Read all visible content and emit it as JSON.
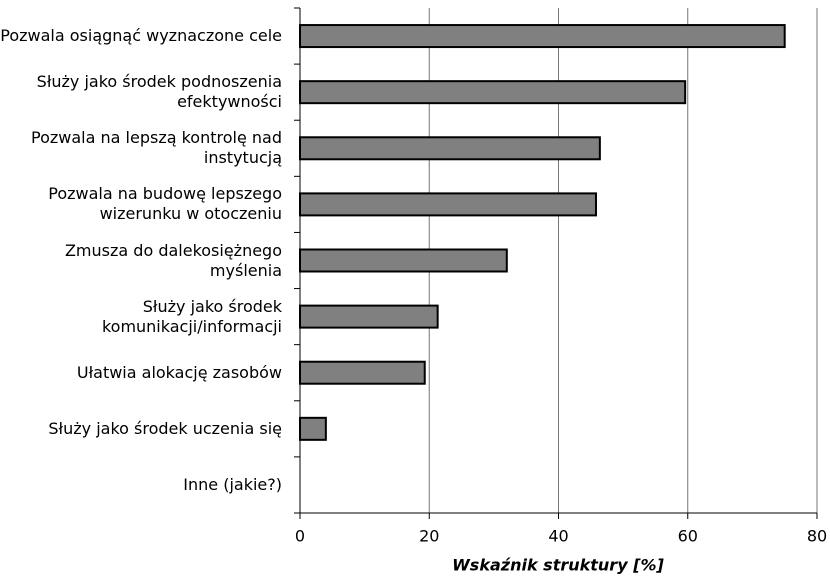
{
  "chart_data": {
    "type": "bar",
    "orientation": "horizontal",
    "x_label": "Wskaźnik struktury [%]",
    "categories": [
      "Pozwala osiągnąć wyznaczone cele",
      "Służy jako środek podnoszenia efektywności",
      "Pozwala na lepszą kontrolę nad instytucją",
      "Pozwala na budowę lepszego wizerunku w otoczeniu",
      "Zmusza do dalekosiężnego myślenia",
      "Służy jako środek komunikacji/informacji",
      "Ułatwia alokację zasobów",
      "Służy jako środek uczenia się",
      "Inne (jakie?)"
    ],
    "values": [
      75,
      59.6,
      46.4,
      45.8,
      32,
      21.3,
      19.3,
      4,
      0
    ],
    "color": "#808080",
    "xlim": [
      0,
      80
    ],
    "xticks": [
      0,
      20,
      40,
      60,
      80
    ],
    "grid": true
  }
}
